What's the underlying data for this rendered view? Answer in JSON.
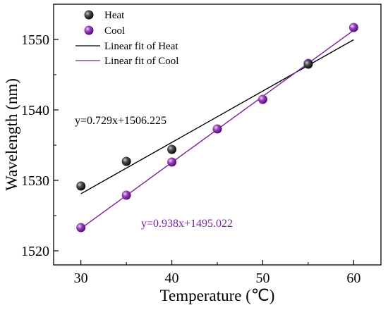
{
  "chart_data": {
    "type": "scatter",
    "xlabel": "Temperature (℃)",
    "ylabel": "Wavelength (nm)",
    "xlim": [
      27,
      63
    ],
    "ylim": [
      1518,
      1555
    ],
    "xticks": [
      30,
      40,
      50,
      60
    ],
    "xticks_minor": [
      35,
      45,
      55
    ],
    "yticks": [
      1520,
      1530,
      1540,
      1550
    ],
    "yticks_minor": [
      1525,
      1535,
      1545
    ],
    "legend_position": "top-left",
    "series": [
      {
        "name": "Heat",
        "color": "#000000",
        "x": [
          30,
          35,
          40,
          55
        ],
        "y": [
          1529.2,
          1532.7,
          1534.4,
          1546.5
        ]
      },
      {
        "name": "Cool",
        "color": "#7b1fa2",
        "x": [
          30,
          35,
          40,
          45,
          50,
          55,
          60
        ],
        "y": [
          1523.3,
          1527.9,
          1532.6,
          1537.3,
          1541.5,
          1546.6,
          1551.7
        ]
      }
    ],
    "fits": [
      {
        "name": "Linear fit of Heat",
        "color": "#000000",
        "slope": 0.729,
        "intercept": 1506.225,
        "x_range": [
          30,
          60
        ]
      },
      {
        "name": "Linear fit of Cool",
        "color": "#7b1fa2",
        "slope": 0.938,
        "intercept": 1495.022,
        "x_range": [
          30,
          60
        ]
      }
    ],
    "annotations": [
      {
        "text": "y=0.729x+1506.225",
        "color": "#000000"
      },
      {
        "text": "y=0.938x+1495.022",
        "color": "#7b1fa2"
      }
    ]
  }
}
